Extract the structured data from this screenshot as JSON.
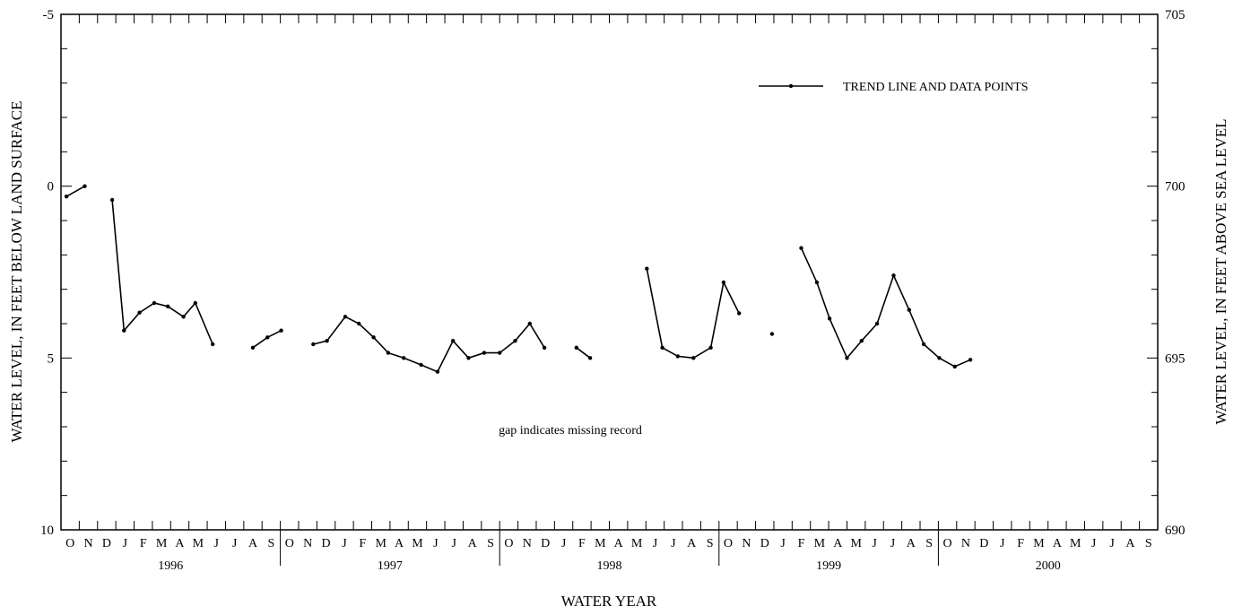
{
  "chart_data": {
    "type": "line",
    "title": "",
    "xlabel": "WATER YEAR",
    "ylabel_left": "WATER LEVEL, IN FEET BELOW LAND SURFACE",
    "ylabel_right": "WATER LEVEL, IN FEET ABOVE SEA LEVEL",
    "ylim_left": [
      -5,
      10
    ],
    "ylim_right": [
      705,
      690
    ],
    "left_ticks": [
      "-5",
      "0",
      "5",
      "10"
    ],
    "right_ticks": [
      "705",
      "700",
      "695",
      "690"
    ],
    "grid": false,
    "water_years": [
      "1996",
      "1997",
      "1998",
      "1999",
      "2000"
    ],
    "month_letters": [
      "O",
      "N",
      "D",
      "J",
      "F",
      "M",
      "A",
      "M",
      "J",
      "J",
      "A",
      "S"
    ],
    "legend": {
      "label": "TREND LINE AND DATA POINTS",
      "placement": "top-right"
    },
    "annotation": "gap indicates missing record",
    "x_unit": "months since start of water year 1996 (Oct 1, 1995 = 0)",
    "series": [
      {
        "name": "TREND LINE AND DATA POINTS",
        "segments": [
          [
            [
              0.3,
              0.3
            ],
            [
              1.3,
              0.0
            ]
          ],
          [
            [
              2.8,
              0.4
            ],
            [
              3.45,
              4.2
            ],
            [
              4.3,
              3.68
            ],
            [
              5.1,
              3.4
            ],
            [
              5.85,
              3.5
            ],
            [
              6.7,
              3.8
            ],
            [
              7.35,
              3.4
            ],
            [
              8.3,
              4.6
            ]
          ],
          [
            [
              10.5,
              4.7
            ],
            [
              11.3,
              4.4
            ],
            [
              12.05,
              4.2
            ]
          ],
          [
            [
              13.8,
              4.6
            ],
            [
              14.55,
              4.5
            ],
            [
              15.55,
              3.8
            ],
            [
              16.3,
              4.0
            ],
            [
              17.1,
              4.4
            ],
            [
              17.9,
              4.85
            ],
            [
              18.75,
              5.0
            ],
            [
              19.7,
              5.2
            ],
            [
              20.6,
              5.4
            ],
            [
              21.45,
              4.5
            ],
            [
              22.3,
              5.0
            ],
            [
              23.15,
              4.85
            ],
            [
              24.0,
              4.85
            ],
            [
              24.85,
              4.5
            ],
            [
              25.65,
              4.0
            ],
            [
              26.45,
              4.7
            ]
          ],
          [
            [
              28.2,
              4.7
            ],
            [
              28.95,
              5.0
            ]
          ],
          [
            [
              32.05,
              2.4
            ],
            [
              32.9,
              4.7
            ],
            [
              33.75,
              4.95
            ],
            [
              34.6,
              5.0
            ],
            [
              35.55,
              4.7
            ],
            [
              36.25,
              2.8
            ],
            [
              37.1,
              3.7
            ]
          ],
          [
            [
              38.9,
              4.3
            ]
          ],
          [
            [
              40.5,
              1.8
            ],
            [
              41.35,
              2.8
            ],
            [
              42.05,
              3.85
            ],
            [
              43.0,
              5.0
            ],
            [
              43.8,
              4.5
            ],
            [
              44.65,
              4.0
            ],
            [
              45.55,
              2.6
            ],
            [
              46.4,
              3.6
            ],
            [
              47.2,
              4.6
            ],
            [
              48.05,
              5.0
            ],
            [
              48.9,
              5.25
            ],
            [
              49.75,
              5.05
            ]
          ]
        ]
      }
    ]
  }
}
